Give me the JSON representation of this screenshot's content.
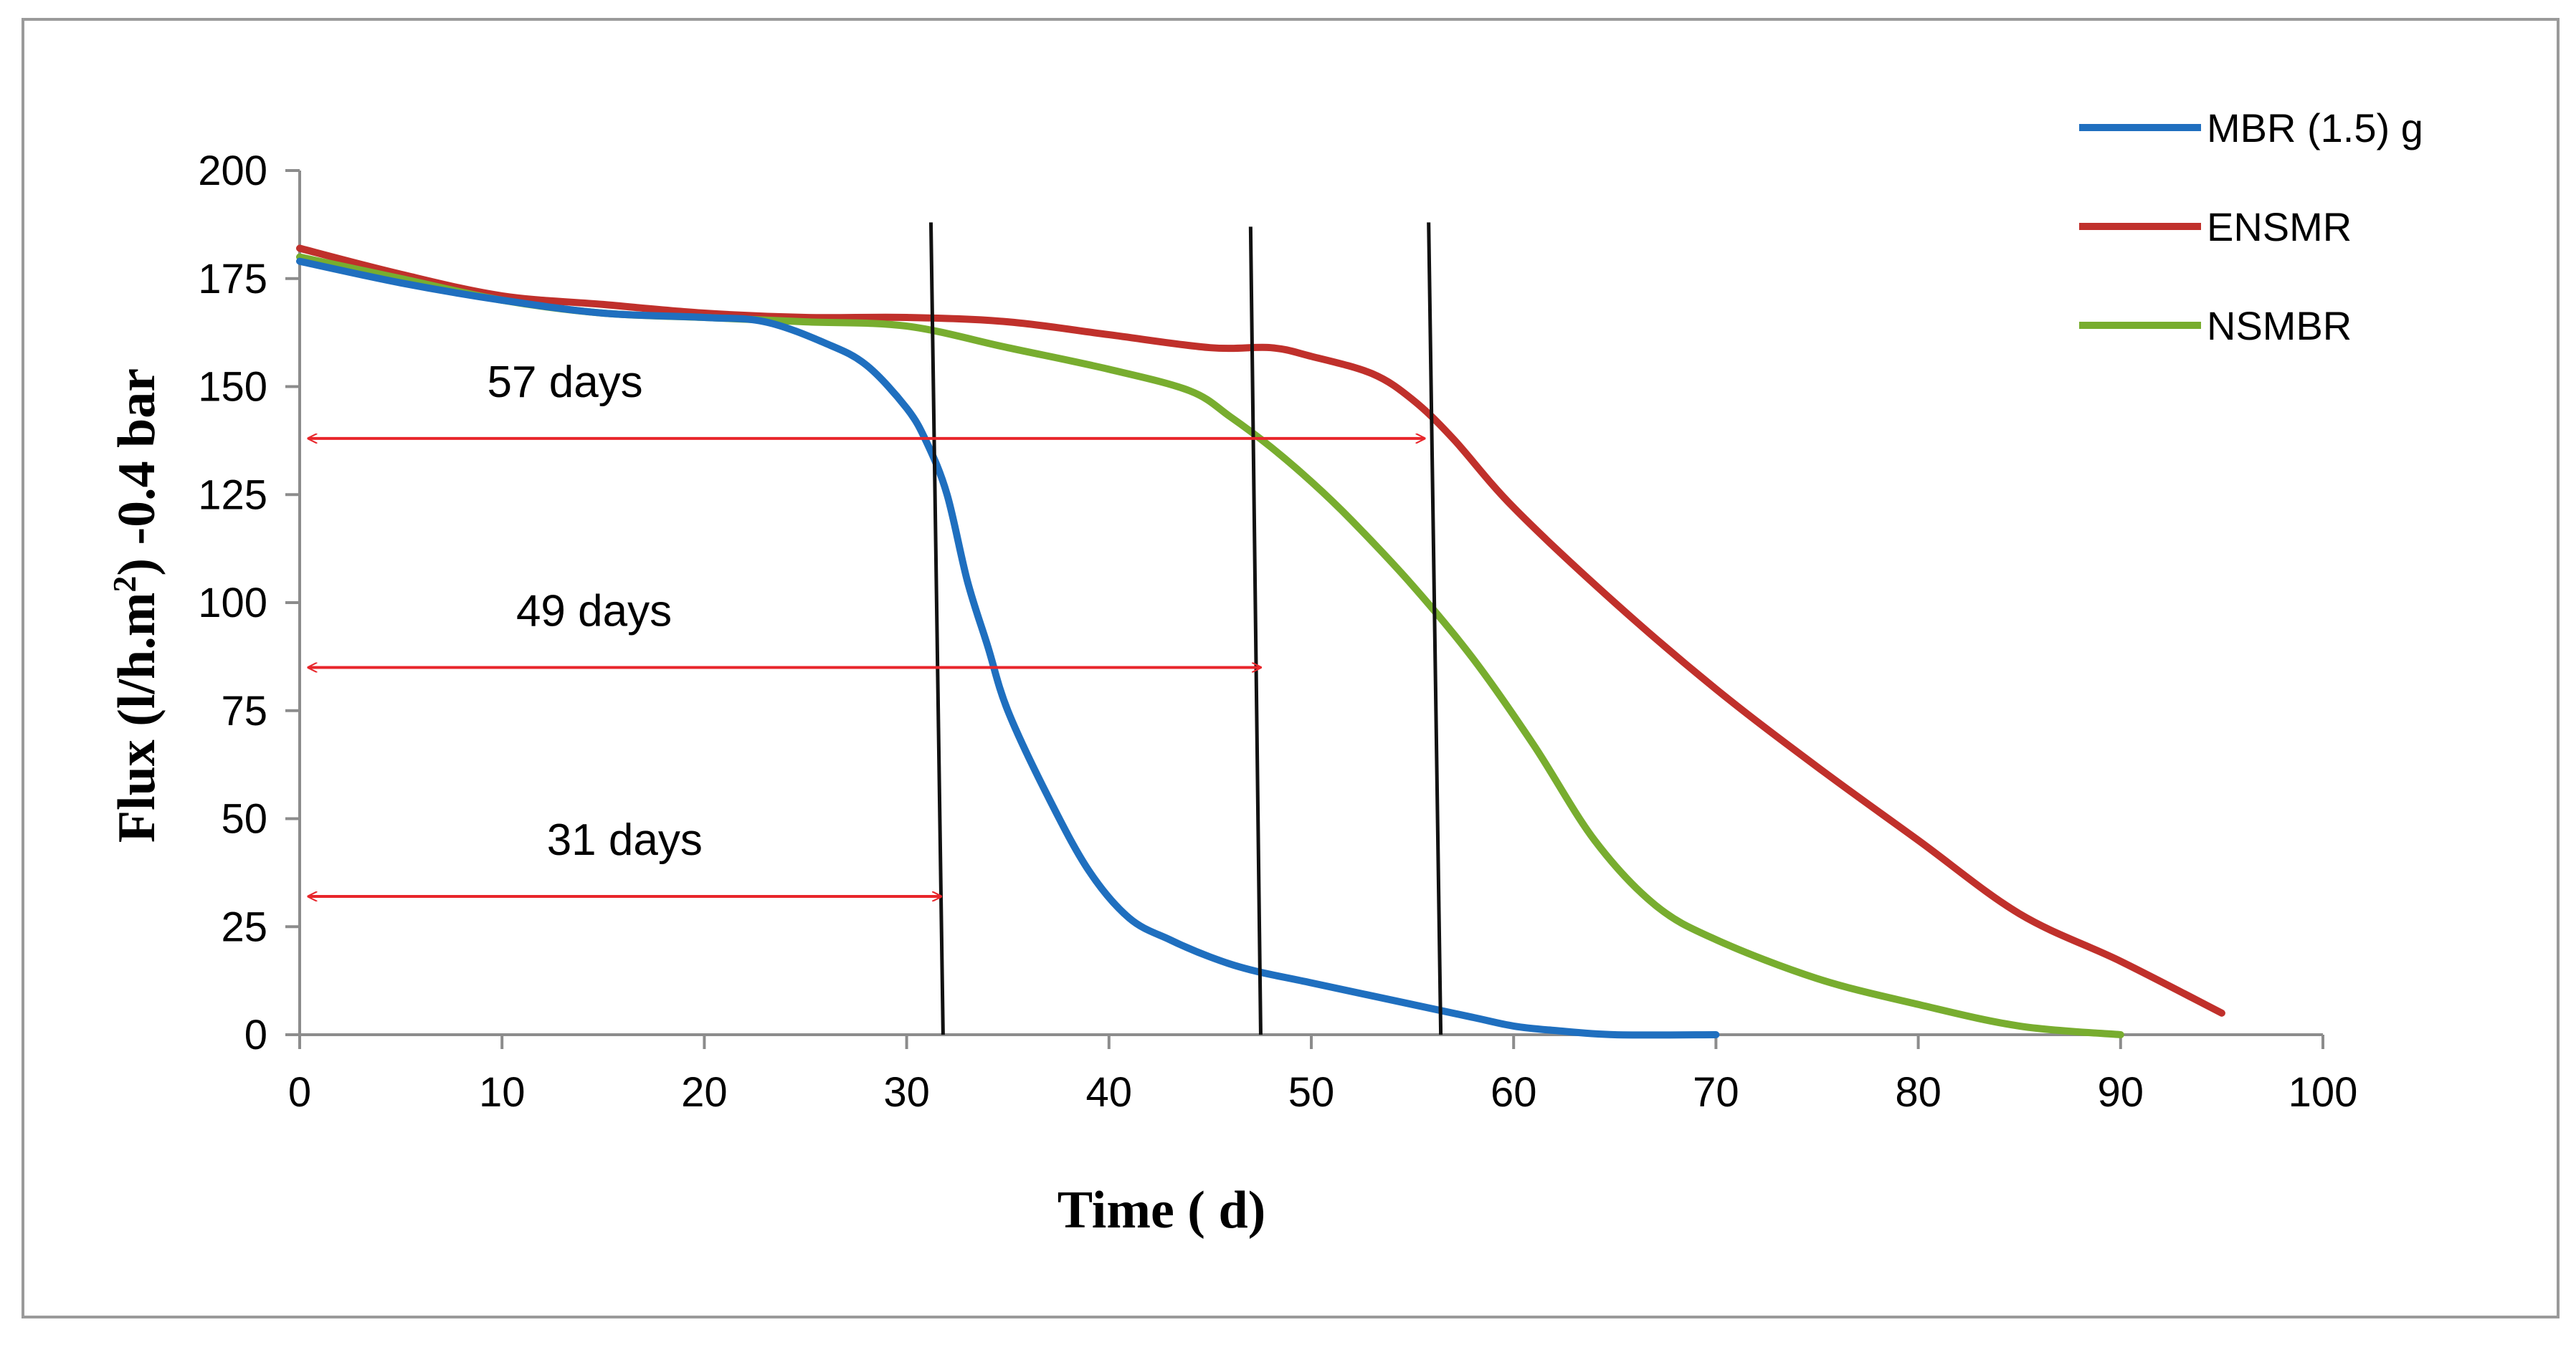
{
  "chart_data": {
    "type": "line",
    "title": "",
    "xlabel": "Time ( d)",
    "ylabel_main": "Flux (l/h.m",
    "ylabel_sup": "2",
    "ylabel_tail": ") -0.4 bar",
    "xlim": [
      0,
      100
    ],
    "ylim": [
      0,
      200
    ],
    "xticks": [
      "0",
      "10",
      "20",
      "30",
      "40",
      "50",
      "60",
      "70",
      "80",
      "90",
      "100"
    ],
    "yticks": [
      "0",
      "25",
      "50",
      "75",
      "100",
      "125",
      "150",
      "175",
      "200"
    ],
    "legend_position": "top-right",
    "series": [
      {
        "name": "MBR (1.5) g",
        "color": "#1f6fbf",
        "points": [
          [
            0,
            179
          ],
          [
            5,
            174
          ],
          [
            10,
            170
          ],
          [
            15,
            167
          ],
          [
            20,
            166
          ],
          [
            23,
            165
          ],
          [
            26,
            160
          ],
          [
            28,
            155
          ],
          [
            30,
            145
          ],
          [
            31,
            137
          ],
          [
            32,
            125
          ],
          [
            33,
            105
          ],
          [
            34,
            90
          ],
          [
            35,
            75
          ],
          [
            37,
            55
          ],
          [
            39,
            38
          ],
          [
            41,
            27
          ],
          [
            43,
            22
          ],
          [
            45,
            18
          ],
          [
            47,
            15
          ],
          [
            50,
            12
          ],
          [
            55,
            7
          ],
          [
            58,
            4
          ],
          [
            60,
            2
          ],
          [
            62,
            1
          ],
          [
            65,
            0
          ],
          [
            70,
            0
          ]
        ]
      },
      {
        "name": "ENSMR",
        "color": "#c0302b",
        "points": [
          [
            0,
            182
          ],
          [
            5,
            176
          ],
          [
            10,
            171
          ],
          [
            15,
            169
          ],
          [
            20,
            167
          ],
          [
            25,
            166
          ],
          [
            30,
            166
          ],
          [
            35,
            165
          ],
          [
            40,
            162
          ],
          [
            45,
            159
          ],
          [
            48,
            159
          ],
          [
            50,
            157
          ],
          [
            53,
            153
          ],
          [
            55,
            147
          ],
          [
            57,
            138
          ],
          [
            60,
            122
          ],
          [
            65,
            100
          ],
          [
            70,
            80
          ],
          [
            75,
            62
          ],
          [
            80,
            45
          ],
          [
            85,
            28
          ],
          [
            90,
            17
          ],
          [
            95,
            5
          ]
        ]
      },
      {
        "name": "NSMBR",
        "color": "#78ad2f",
        "points": [
          [
            0,
            180
          ],
          [
            5,
            175
          ],
          [
            10,
            170
          ],
          [
            15,
            167
          ],
          [
            20,
            166
          ],
          [
            25,
            165
          ],
          [
            30,
            164
          ],
          [
            35,
            159
          ],
          [
            40,
            154
          ],
          [
            44,
            149
          ],
          [
            46,
            143
          ],
          [
            48,
            136
          ],
          [
            50,
            128
          ],
          [
            52,
            119
          ],
          [
            55,
            104
          ],
          [
            58,
            87
          ],
          [
            61,
            67
          ],
          [
            64,
            45
          ],
          [
            67,
            30
          ],
          [
            70,
            22
          ],
          [
            75,
            13
          ],
          [
            80,
            7
          ],
          [
            85,
            2
          ],
          [
            90,
            0
          ]
        ]
      }
    ],
    "annotations": [
      {
        "label": "57 days",
        "x_end": 55.6,
        "y": 138
      },
      {
        "label": "49 days",
        "x_end": 47.5,
        "y": 85
      },
      {
        "label": "31 days",
        "x_end": 31.7,
        "y": 32
      }
    ],
    "vertical_markers": [
      {
        "x_top": 31.2,
        "x_bottom": 31.8,
        "y_top": 188
      },
      {
        "x_top": 47.0,
        "x_bottom": 47.5,
        "y_top": 187
      },
      {
        "x_top": 55.8,
        "x_bottom": 56.4,
        "y_top": 188
      }
    ]
  }
}
